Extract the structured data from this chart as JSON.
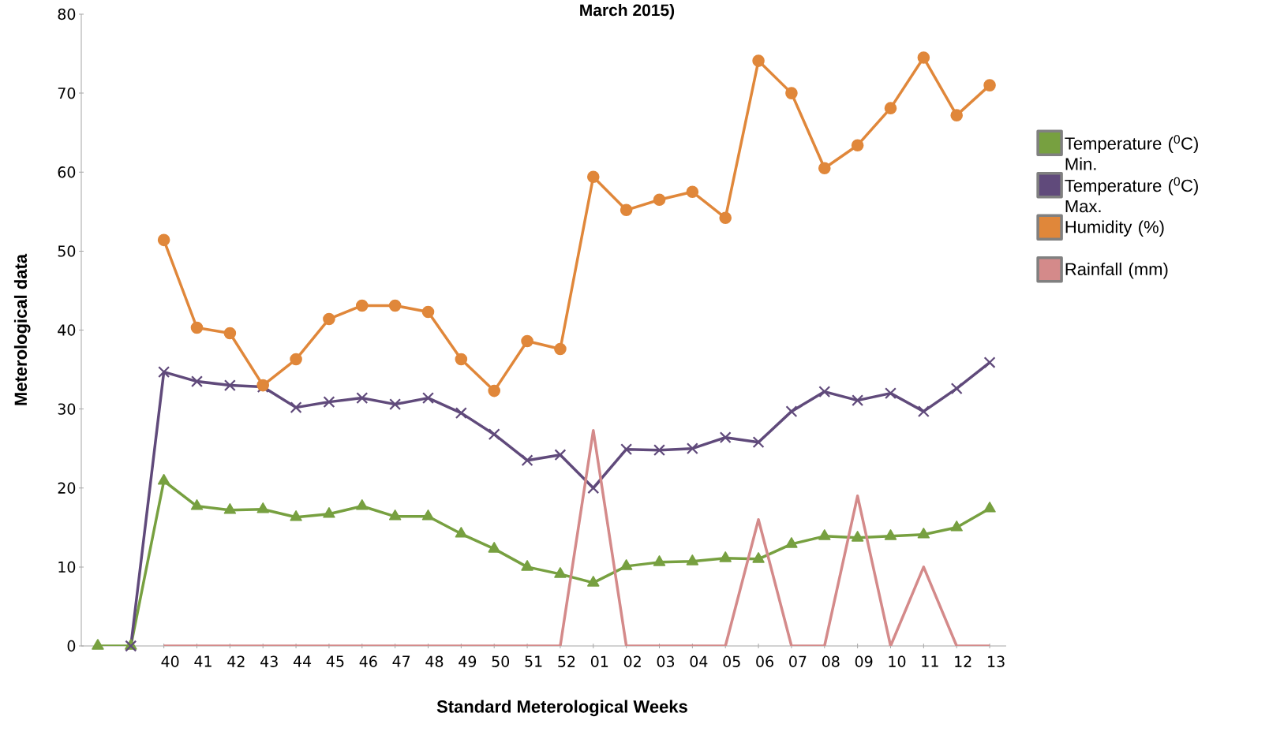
{
  "chart_data": {
    "type": "line",
    "title": "**March 2015)**",
    "xlabel": "Standard Meterological Weeks",
    "ylabel": "Meterological data",
    "categories": [
      null,
      null,
      "40",
      "41",
      "42",
      "43",
      "44",
      "45",
      "46",
      "47",
      "48",
      "49",
      "50",
      "51",
      "52",
      "01",
      "02",
      "03",
      "04",
      "05",
      "06",
      "07",
      "08",
      "09",
      "10",
      "11",
      "12",
      "13"
    ],
    "ylim": [
      0,
      80
    ],
    "yticks": [
      0,
      10,
      20,
      30,
      40,
      50,
      60,
      70,
      80
    ],
    "grid": false,
    "legend": "right",
    "series": [
      {
        "name": "Temperature ($^{0}$C) Min.",
        "color": "#77a040",
        "marker": "triangle",
        "values": [
          0,
          0,
          20.9,
          17.7,
          17.2,
          17.3,
          16.3,
          16.7,
          17.7,
          16.4,
          16.4,
          14.2,
          12.3,
          10.0,
          9.1,
          8.0,
          10.1,
          10.6,
          10.7,
          11.1,
          11.0,
          12.9,
          13.9,
          13.7,
          13.9,
          14.1,
          15.0,
          17.4
        ]
      },
      {
        "name": "Temperature ($^{0}$C) Max.",
        "color": "#604a7b",
        "marker": "cross",
        "values": [
          null,
          0,
          34.7,
          33.5,
          33.0,
          32.8,
          30.2,
          30.9,
          31.4,
          30.6,
          31.4,
          29.5,
          26.8,
          23.5,
          24.2,
          20.0,
          24.9,
          24.8,
          25.0,
          26.4,
          25.8,
          29.7,
          32.2,
          31.1,
          32.0,
          29.7,
          32.6,
          35.9
        ]
      },
      {
        "name": "Humidity (%)",
        "color": "#e0873a",
        "marker": "circle",
        "values": [
          null,
          null,
          51.4,
          40.3,
          39.6,
          33.0,
          36.3,
          41.4,
          43.1,
          43.1,
          42.3,
          36.3,
          32.3,
          38.6,
          37.6,
          59.4,
          55.2,
          56.5,
          57.5,
          54.2,
          74.1,
          70.0,
          60.5,
          63.4,
          68.1,
          74.5,
          67.2,
          71.0
        ]
      },
      {
        "name": "Rainfall (mm)",
        "color": "#d48a8a",
        "marker": "none",
        "values": [
          null,
          null,
          0,
          0,
          0,
          0,
          0,
          0,
          0,
          0,
          0,
          0,
          0,
          0,
          0,
          27.3,
          0,
          0,
          0,
          0,
          16.0,
          0,
          0,
          19.0,
          0,
          10.0,
          0,
          0
        ]
      }
    ]
  }
}
